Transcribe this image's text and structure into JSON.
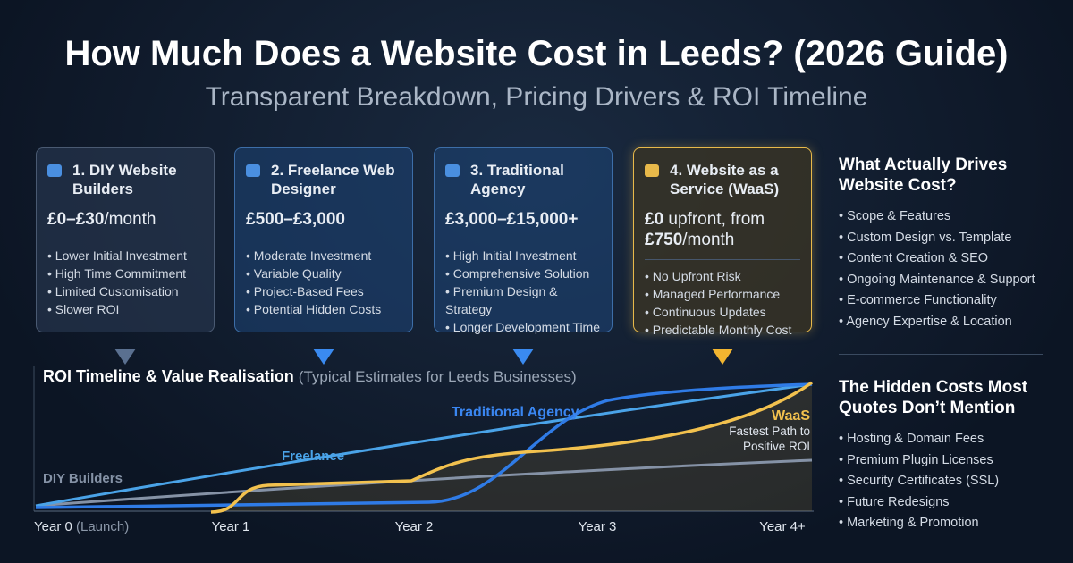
{
  "header": {
    "title": "How Much Does a Website Cost in Leeds? (2026 Guide)",
    "subtitle": "Transparent Breakdown, Pricing Drivers & ROI Timeline"
  },
  "cards": [
    {
      "title": "1. DIY Website Builders",
      "price": [
        "£0–£30",
        "/month"
      ],
      "bullets": [
        "Lower Initial Investment",
        "High Time Commitment",
        "Limited Customisation",
        "Slower ROI"
      ]
    },
    {
      "title": "2. Freelance Web Designer",
      "price": [
        "£500–£3,000"
      ],
      "bullets": [
        "Moderate Investment",
        "Variable Quality",
        "Project-Based Fees",
        "Potential Hidden Costs"
      ]
    },
    {
      "title": "3. Traditional Agency",
      "price": [
        "£3,000–£15,000+"
      ],
      "bullets": [
        "High Initial Investment",
        "Comprehensive Solution",
        "Premium Design & Strategy",
        "Longer Development Time"
      ]
    },
    {
      "title": "4. Website as a Service (WaaS)",
      "price": [
        "£0",
        " upfront, from ",
        "£750",
        "/month"
      ],
      "bullets": [
        "No Upfront Risk",
        "Managed Performance",
        "Continuous Updates",
        "Predictable Monthly Cost"
      ]
    }
  ],
  "timeline": {
    "title": "ROI Timeline & Value Realisation",
    "subtitle": "(Typical Estimates for Leeds Businesses)",
    "x_labels": [
      "Year 0",
      "Year 1",
      "Year 2",
      "Year 3",
      "Year 4+"
    ],
    "launch_note": "(Launch)",
    "lines": {
      "traditional": "Traditional Agency",
      "freelance": "Freelance",
      "diy": "DIY Builders",
      "waas": "WaaS",
      "waas_note": "Fastest Path to Positive ROI"
    }
  },
  "drivers": {
    "title": "What Actually Drives Website Cost?",
    "items": [
      "Scope & Features",
      "Custom Design vs. Template",
      "Content Creation & SEO",
      "Ongoing Maintenance & Support",
      "E-commerce Functionality",
      "Agency Expertise & Location"
    ]
  },
  "hidden": {
    "title": "The Hidden Costs Most Quotes Don’t Mention",
    "items": [
      "Hosting & Domain Fees",
      "Premium Plugin Licenses",
      "Security Certificates (SSL)",
      "Future Redesigns",
      "Marketing & Promotion"
    ]
  }
}
